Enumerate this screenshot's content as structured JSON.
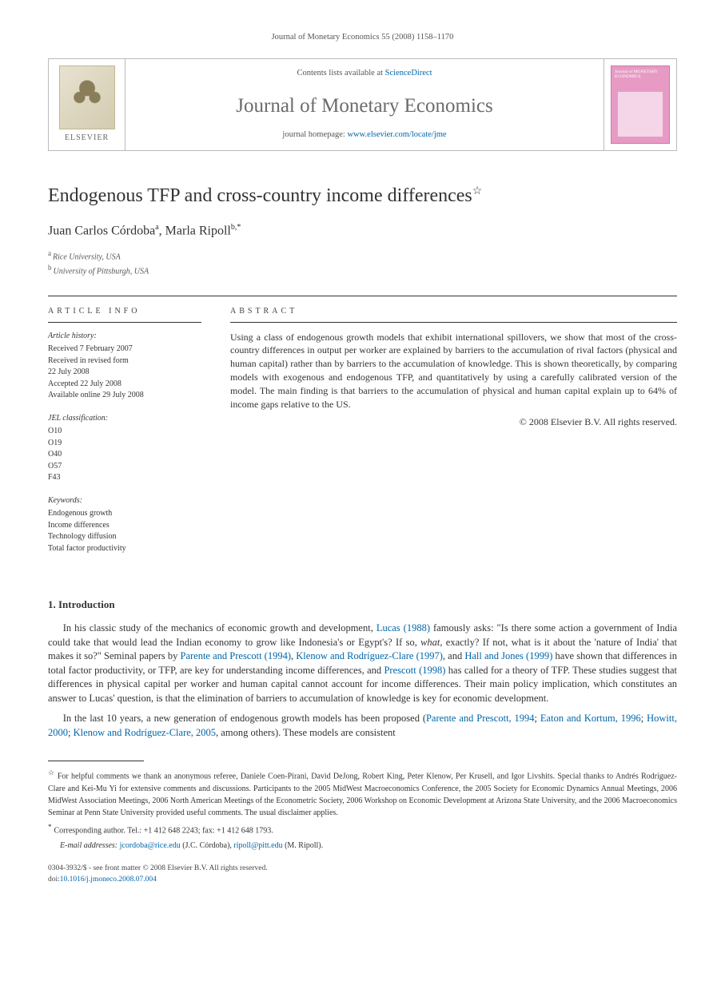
{
  "running_head": "Journal of Monetary Economics 55 (2008) 1158–1170",
  "masthead": {
    "contents_prefix": "Contents lists available at ",
    "contents_link": "ScienceDirect",
    "journal_name": "Journal of Monetary Economics",
    "homepage_prefix": "journal homepage: ",
    "homepage_url": "www.elsevier.com/locate/jme",
    "elsevier_label": "ELSEVIER",
    "cover_title": "Journal of MONETARY ECONOMICS"
  },
  "title": "Endogenous TFP and cross-country income differences",
  "title_star": "☆",
  "authors": [
    {
      "name": "Juan Carlos Córdoba",
      "marks": "a"
    },
    {
      "name": "Marla Ripoll",
      "marks": "b,*"
    }
  ],
  "author_sep": ", ",
  "affiliations": [
    {
      "mark": "a",
      "text": "Rice University, USA"
    },
    {
      "mark": "b",
      "text": "University of Pittsburgh, USA"
    }
  ],
  "info": {
    "heading": "ARTICLE INFO",
    "history_title": "Article history:",
    "history": [
      "Received 7 February 2007",
      "Received in revised form",
      "22 July 2008",
      "Accepted 22 July 2008",
      "Available online 29 July 2008"
    ],
    "jel_title": "JEL classification:",
    "jel": [
      "O10",
      "O19",
      "O40",
      "O57",
      "F43"
    ],
    "keywords_title": "Keywords:",
    "keywords": [
      "Endogenous growth",
      "Income differences",
      "Technology diffusion",
      "Total factor productivity"
    ]
  },
  "abstract": {
    "heading": "ABSTRACT",
    "text": "Using a class of endogenous growth models that exhibit international spillovers, we show that most of the cross-country differences in output per worker are explained by barriers to the accumulation of rival factors (physical and human capital) rather than by barriers to the accumulation of knowledge. This is shown theoretically, by comparing models with exogenous and endogenous TFP, and quantitatively by using a carefully calibrated version of the model. The main finding is that barriers to the accumulation of physical and human capital explain up to 64% of income gaps relative to the US.",
    "copyright": "© 2008 Elsevier B.V. All rights reserved."
  },
  "section1": {
    "title": "1.  Introduction",
    "p1_a": "In his classic study of the mechanics of economic growth and development, ",
    "p1_link1": "Lucas (1988)",
    "p1_b": " famously asks: \"Is there some action a government of India could take that would lead the Indian economy to grow like Indonesia's or Egypt's? If so, ",
    "p1_ital": "what",
    "p1_c": ", exactly? If not, what is it about the 'nature of India' that makes it so?\" Seminal papers by ",
    "p1_link2": "Parente and Prescott (1994)",
    "p1_d": ", ",
    "p1_link3": "Klenow and Rodríguez-Clare (1997)",
    "p1_e": ", and ",
    "p1_link4": "Hall and Jones (1999)",
    "p1_f": " have shown that differences in total factor productivity, or TFP, are key for understanding income differences, and ",
    "p1_link5": "Prescott (1998)",
    "p1_g": " has called for a theory of TFP. These studies suggest that differences in physical capital per worker and human capital cannot account for income differences. Their main policy implication, which constitutes an answer to Lucas' question, is that the elimination of barriers to accumulation of knowledge is key for economic development.",
    "p2_a": "In the last 10 years, a new generation of endogenous growth models has been proposed (",
    "p2_link1": "Parente and Prescott, 1994",
    "p2_b": "; ",
    "p2_link2": "Eaton and Kortum, 1996",
    "p2_c": "; ",
    "p2_link3": "Howitt, 2000",
    "p2_d": "; ",
    "p2_link4": "Klenow and Rodríguez-Clare, 2005",
    "p2_e": ", among others). These models are consistent"
  },
  "footnotes": {
    "fn_star": "For helpful comments we thank an anonymous referee, Daniele Coen-Pirani, David DeJong, Robert King, Peter Klenow, Per Krusell, and Igor Livshits. Special thanks to Andrés Rodríguez-Clare and Kei-Mu Yi for extensive comments and discussions. Participants to the 2005 MidWest Macroeconomics Conference, the 2005 Society for Economic Dynamics Annual Meetings, 2006 MidWest Association Meetings, 2006 North American Meetings of the Econometric Society, 2006 Workshop on Economic Development at Arizona State University, and the 2006 Macroeconomics Seminar at Penn State University provided useful comments. The usual disclaimer applies.",
    "fn_corr_label": "Corresponding author. Tel.: +1 412 648 2243; fax: +1 412 648 1793.",
    "email_label": "E-mail addresses:",
    "email1": "jcordoba@rice.edu",
    "email1_who": "(J.C. Córdoba)",
    "email2": "ripoll@pitt.edu",
    "email2_who": "(M. Ripoll)"
  },
  "footer": {
    "line1": "0304-3932/$ - see front matter © 2008 Elsevier B.V. All rights reserved.",
    "doi_prefix": "doi:",
    "doi": "10.1016/j.jmoneco.2008.07.004"
  },
  "colors": {
    "link": "#0066aa",
    "text": "#333333",
    "rule": "#333333",
    "cover_bg": "#e79bc4"
  },
  "typography": {
    "body_pt": 12.5,
    "title_pt": 24,
    "journal_pt": 25,
    "info_pt": 10,
    "footnote_pt": 10
  }
}
